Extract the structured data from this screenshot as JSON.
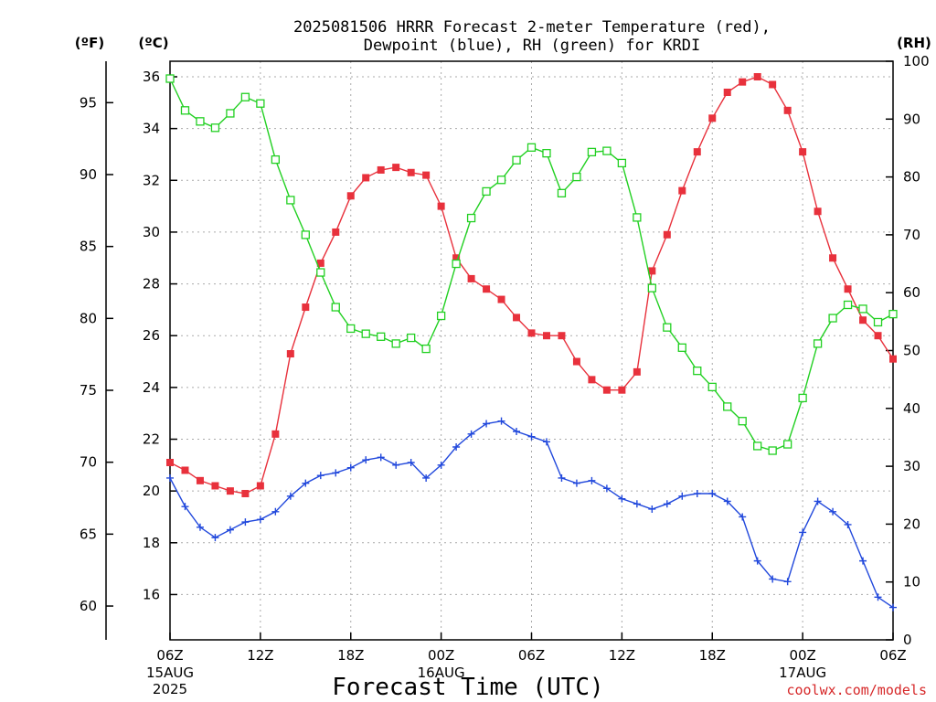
{
  "chart_data": {
    "type": "line",
    "title_lines": [
      "2025081506 HRRR Forecast 2-meter Temperature (red),",
      "Dewpoint (blue), RH (green) for KRDI"
    ],
    "xlabel": "Forecast Time (UTC)",
    "credit": "coolwx.com/models",
    "units": {
      "fahrenheit": "(ºF)",
      "celsius": "(ºC)",
      "rh": "(RH)"
    },
    "x_hours": [
      6,
      7,
      8,
      9,
      10,
      11,
      12,
      13,
      14,
      15,
      16,
      17,
      18,
      19,
      20,
      21,
      22,
      23,
      24,
      25,
      26,
      27,
      28,
      29,
      30,
      31,
      32,
      33,
      34,
      35,
      36,
      37,
      38,
      39,
      40,
      41,
      42,
      43,
      44,
      45,
      46,
      47,
      48,
      49,
      50,
      51,
      52,
      53,
      54
    ],
    "xlim": [
      6,
      54
    ],
    "x_ticks": [
      {
        "hour": 6,
        "label": "06Z",
        "sub": [
          "15AUG",
          "2025"
        ]
      },
      {
        "hour": 12,
        "label": "12Z",
        "sub": []
      },
      {
        "hour": 18,
        "label": "18Z",
        "sub": []
      },
      {
        "hour": 24,
        "label": "00Z",
        "sub": [
          "16AUG"
        ]
      },
      {
        "hour": 30,
        "label": "06Z",
        "sub": []
      },
      {
        "hour": 36,
        "label": "12Z",
        "sub": []
      },
      {
        "hour": 42,
        "label": "18Z",
        "sub": []
      },
      {
        "hour": 48,
        "label": "00Z",
        "sub": [
          "17AUG"
        ]
      },
      {
        "hour": 54,
        "label": "06Z",
        "sub": []
      }
    ],
    "celsius_axis": {
      "ylim": [
        14.25,
        36.6
      ],
      "ticks": [
        16,
        18,
        20,
        22,
        24,
        26,
        28,
        30,
        32,
        34,
        36
      ]
    },
    "fahrenheit_ticks": [
      60,
      65,
      70,
      75,
      80,
      85,
      90,
      95
    ],
    "rh_axis": {
      "ylim": [
        0,
        100
      ],
      "ticks": [
        0,
        10,
        20,
        30,
        40,
        50,
        60,
        70,
        80,
        90,
        100
      ]
    },
    "series": [
      {
        "key": "temperature",
        "color": "#e8313c",
        "marker": "filled-square",
        "axis": "celsius",
        "values": [
          21.1,
          20.8,
          20.4,
          20.2,
          20.0,
          19.9,
          20.2,
          22.2,
          25.3,
          27.1,
          28.8,
          30.0,
          31.4,
          32.1,
          32.4,
          32.5,
          32.3,
          32.2,
          31.0,
          29.0,
          28.2,
          27.8,
          27.4,
          26.7,
          26.1,
          26.0,
          26.0,
          25.0,
          24.3,
          23.9,
          23.9,
          24.6,
          28.5,
          29.9,
          31.6,
          33.1,
          34.4,
          35.4,
          35.8,
          36.0,
          35.7,
          34.7,
          33.1,
          30.8,
          29.0,
          27.8,
          26.6,
          26.0,
          25.1
        ]
      },
      {
        "key": "dewpoint",
        "color": "#2148dc",
        "marker": "plus",
        "axis": "celsius",
        "values": [
          20.5,
          19.4,
          18.6,
          18.2,
          18.5,
          18.8,
          18.9,
          19.2,
          19.8,
          20.3,
          20.6,
          20.7,
          20.9,
          21.2,
          21.3,
          21.0,
          21.1,
          20.5,
          21.0,
          21.7,
          22.2,
          22.6,
          22.7,
          22.3,
          22.1,
          21.9,
          20.5,
          20.3,
          20.4,
          20.1,
          19.7,
          19.5,
          19.3,
          19.5,
          19.8,
          19.9,
          19.9,
          19.6,
          19.0,
          17.3,
          16.6,
          16.5,
          18.4,
          19.6,
          19.2,
          18.7,
          17.3,
          15.9,
          15.5
        ]
      },
      {
        "key": "relative_humidity",
        "color": "#22d022",
        "marker": "open-square",
        "axis": "rh",
        "values": [
          97,
          91.5,
          89.6,
          88.5,
          91,
          93.8,
          92.7,
          83,
          76,
          70,
          63.5,
          57.5,
          53.8,
          52.9,
          52.4,
          51.2,
          52.2,
          50.3,
          56,
          65,
          72.9,
          77.5,
          79.5,
          82.9,
          85.1,
          84.1,
          77.2,
          80,
          84.3,
          84.5,
          82.4,
          73,
          60.8,
          54,
          50.5,
          46.5,
          43.7,
          40.3,
          37.8,
          33.5,
          32.7,
          33.8,
          41.8,
          51.2,
          55.6,
          57.9,
          57.2,
          54.9,
          56.3
        ]
      }
    ]
  }
}
